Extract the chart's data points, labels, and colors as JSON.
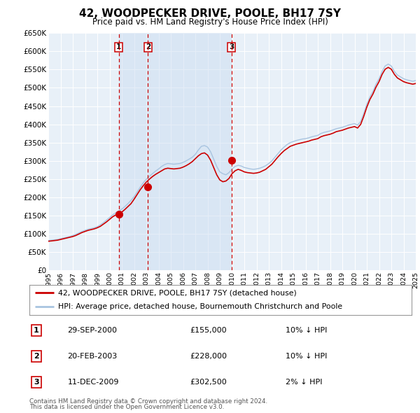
{
  "title": "42, WOODPECKER DRIVE, POOLE, BH17 7SY",
  "subtitle": "Price paid vs. HM Land Registry's House Price Index (HPI)",
  "background_color": "#ffffff",
  "plot_bg_color": "#e8f0f8",
  "grid_color": "#ffffff",
  "year_start": 1995,
  "year_end": 2025,
  "ylim": [
    0,
    650000
  ],
  "yticks": [
    0,
    50000,
    100000,
    150000,
    200000,
    250000,
    300000,
    350000,
    400000,
    450000,
    500000,
    550000,
    600000,
    650000
  ],
  "ytick_labels": [
    "£0",
    "£50K",
    "£100K",
    "£150K",
    "£200K",
    "£250K",
    "£300K",
    "£350K",
    "£400K",
    "£450K",
    "£500K",
    "£550K",
    "£600K",
    "£650K"
  ],
  "sale_color": "#cc0000",
  "hpi_color": "#a8c4e0",
  "sale_dot_color": "#cc0000",
  "dashed_line_color": "#cc0000",
  "transaction_shading_color": "#c8daf0",
  "transactions": [
    {
      "label": "1",
      "date": "29-SEP-2000",
      "price": 155000,
      "hpi_diff": "10% ↓ HPI",
      "year": 2000.75
    },
    {
      "label": "2",
      "date": "20-FEB-2003",
      "price": 228000,
      "hpi_diff": "10% ↓ HPI",
      "year": 2003.13
    },
    {
      "label": "3",
      "date": "11-DEC-2009",
      "price": 302500,
      "hpi_diff": "2% ↓ HPI",
      "year": 2009.95
    }
  ],
  "legend_line1": "42, WOODPECKER DRIVE, POOLE, BH17 7SY (detached house)",
  "legend_line2": "HPI: Average price, detached house, Bournemouth Christchurch and Poole",
  "footnote_line1": "Contains HM Land Registry data © Crown copyright and database right 2024.",
  "footnote_line2": "This data is licensed under the Open Government Licence v3.0.",
  "hpi_data_x": [
    1995.0,
    1995.25,
    1995.5,
    1995.75,
    1996.0,
    1996.25,
    1996.5,
    1996.75,
    1997.0,
    1997.25,
    1997.5,
    1997.75,
    1998.0,
    1998.25,
    1998.5,
    1998.75,
    1999.0,
    1999.25,
    1999.5,
    1999.75,
    2000.0,
    2000.25,
    2000.5,
    2000.75,
    2001.0,
    2001.25,
    2001.5,
    2001.75,
    2002.0,
    2002.25,
    2002.5,
    2002.75,
    2003.0,
    2003.25,
    2003.5,
    2003.75,
    2004.0,
    2004.25,
    2004.5,
    2004.75,
    2005.0,
    2005.25,
    2005.5,
    2005.75,
    2006.0,
    2006.25,
    2006.5,
    2006.75,
    2007.0,
    2007.25,
    2007.5,
    2007.75,
    2008.0,
    2008.25,
    2008.5,
    2008.75,
    2009.0,
    2009.25,
    2009.5,
    2009.75,
    2010.0,
    2010.25,
    2010.5,
    2010.75,
    2011.0,
    2011.25,
    2011.5,
    2011.75,
    2012.0,
    2012.25,
    2012.5,
    2012.75,
    2013.0,
    2013.25,
    2013.5,
    2013.75,
    2014.0,
    2014.25,
    2014.5,
    2014.75,
    2015.0,
    2015.25,
    2015.5,
    2015.75,
    2016.0,
    2016.25,
    2016.5,
    2016.75,
    2017.0,
    2017.25,
    2017.5,
    2017.75,
    2018.0,
    2018.25,
    2018.5,
    2018.75,
    2019.0,
    2019.25,
    2019.5,
    2019.75,
    2020.0,
    2020.25,
    2020.5,
    2020.75,
    2021.0,
    2021.25,
    2021.5,
    2021.75,
    2022.0,
    2022.25,
    2022.5,
    2022.75,
    2023.0,
    2023.25,
    2023.5,
    2023.75,
    2024.0,
    2024.25,
    2024.5,
    2024.75,
    2025.0
  ],
  "hpi_data_y": [
    82000,
    83000,
    84000,
    85000,
    87000,
    89000,
    91000,
    93000,
    96000,
    99000,
    103000,
    107000,
    110000,
    113000,
    115000,
    117000,
    120000,
    125000,
    131000,
    138000,
    145000,
    152000,
    158000,
    163000,
    168000,
    175000,
    183000,
    192000,
    202000,
    215000,
    228000,
    240000,
    250000,
    258000,
    265000,
    272000,
    278000,
    285000,
    290000,
    293000,
    292000,
    291000,
    292000,
    293000,
    296000,
    300000,
    305000,
    310000,
    318000,
    330000,
    340000,
    342000,
    338000,
    325000,
    305000,
    285000,
    270000,
    265000,
    262000,
    268000,
    278000,
    285000,
    288000,
    286000,
    282000,
    280000,
    278000,
    277000,
    278000,
    280000,
    283000,
    287000,
    293000,
    300000,
    310000,
    320000,
    330000,
    338000,
    345000,
    350000,
    353000,
    356000,
    358000,
    360000,
    361000,
    363000,
    366000,
    368000,
    370000,
    375000,
    378000,
    380000,
    382000,
    385000,
    388000,
    390000,
    392000,
    395000,
    398000,
    400000,
    402000,
    398000,
    408000,
    430000,
    455000,
    475000,
    490000,
    510000,
    525000,
    545000,
    560000,
    565000,
    560000,
    545000,
    535000,
    530000,
    525000,
    522000,
    520000,
    518000,
    520000
  ],
  "sale_data_x": [
    1995.0,
    1995.25,
    1995.5,
    1995.75,
    1996.0,
    1996.25,
    1996.5,
    1996.75,
    1997.0,
    1997.25,
    1997.5,
    1997.75,
    1998.0,
    1998.25,
    1998.5,
    1998.75,
    1999.0,
    1999.25,
    1999.5,
    1999.75,
    2000.0,
    2000.25,
    2000.5,
    2000.75,
    2001.0,
    2001.25,
    2001.5,
    2001.75,
    2002.0,
    2002.25,
    2002.5,
    2002.75,
    2003.0,
    2003.25,
    2003.5,
    2003.75,
    2004.0,
    2004.25,
    2004.5,
    2004.75,
    2005.0,
    2005.25,
    2005.5,
    2005.75,
    2006.0,
    2006.25,
    2006.5,
    2006.75,
    2007.0,
    2007.25,
    2007.5,
    2007.75,
    2008.0,
    2008.25,
    2008.5,
    2008.75,
    2009.0,
    2009.25,
    2009.5,
    2009.75,
    2010.0,
    2010.25,
    2010.5,
    2010.75,
    2011.0,
    2011.25,
    2011.5,
    2011.75,
    2012.0,
    2012.25,
    2012.5,
    2012.75,
    2013.0,
    2013.25,
    2013.5,
    2013.75,
    2014.0,
    2014.25,
    2014.5,
    2014.75,
    2015.0,
    2015.25,
    2015.5,
    2015.75,
    2016.0,
    2016.25,
    2016.5,
    2016.75,
    2017.0,
    2017.25,
    2017.5,
    2017.75,
    2018.0,
    2018.25,
    2018.5,
    2018.75,
    2019.0,
    2019.25,
    2019.5,
    2019.75,
    2020.0,
    2020.25,
    2020.5,
    2020.75,
    2021.0,
    2021.25,
    2021.5,
    2021.75,
    2022.0,
    2022.25,
    2022.5,
    2022.75,
    2023.0,
    2023.25,
    2023.5,
    2023.75,
    2024.0,
    2024.25,
    2024.5,
    2024.75,
    2025.0
  ],
  "sale_data_y": [
    80000,
    81000,
    82000,
    83000,
    85000,
    87000,
    89000,
    91000,
    93000,
    96000,
    100000,
    104000,
    107000,
    110000,
    112000,
    114000,
    117000,
    121000,
    127000,
    133000,
    140000,
    147000,
    152000,
    155000,
    160000,
    167000,
    175000,
    183000,
    195000,
    208000,
    221000,
    232000,
    242000,
    250000,
    257000,
    263000,
    268000,
    273000,
    278000,
    280000,
    279000,
    278000,
    279000,
    280000,
    283000,
    287000,
    292000,
    298000,
    306000,
    314000,
    320000,
    322000,
    316000,
    302000,
    282000,
    262000,
    248000,
    243000,
    245000,
    252000,
    265000,
    273000,
    277000,
    274000,
    270000,
    268000,
    267000,
    266000,
    267000,
    269000,
    273000,
    277000,
    284000,
    291000,
    301000,
    311000,
    320000,
    328000,
    334000,
    340000,
    343000,
    346000,
    348000,
    350000,
    352000,
    354000,
    357000,
    359000,
    361000,
    366000,
    369000,
    371000,
    373000,
    376000,
    380000,
    382000,
    384000,
    387000,
    390000,
    392000,
    394000,
    390000,
    400000,
    422000,
    447000,
    468000,
    483000,
    502000,
    517000,
    537000,
    551000,
    556000,
    551000,
    537000,
    527000,
    522000,
    517000,
    514000,
    512000,
    510000,
    512000
  ]
}
